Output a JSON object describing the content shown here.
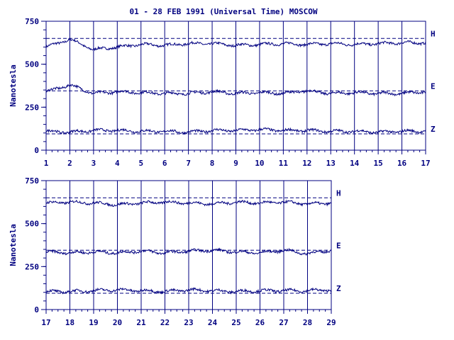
{
  "title": "01 - 28 FEB 1991 (Universal Time) MOSCOW",
  "chart_data": [
    {
      "type": "line",
      "ylabel": "Nanotesla",
      "ylim": [
        0,
        750
      ],
      "yticks": [
        "0",
        "250",
        "500",
        "750"
      ],
      "xlim": [
        1,
        17
      ],
      "xticks": [
        "1",
        "2",
        "3",
        "4",
        "5",
        "6",
        "7",
        "8",
        "9",
        "10",
        "11",
        "12",
        "13",
        "14",
        "15",
        "16",
        "17"
      ],
      "grid": "vertical day lines",
      "series": [
        {
          "name": "H",
          "ref": 650,
          "values": [
            600,
            645,
            585,
            600,
            615,
            610,
            620,
            620,
            610,
            615,
            620,
            615,
            620,
            615,
            620,
            625,
            625
          ]
        },
        {
          "name": "E",
          "ref": 345,
          "values": [
            340,
            380,
            330,
            340,
            335,
            330,
            330,
            340,
            330,
            335,
            330,
            345,
            330,
            335,
            330,
            330,
            340
          ]
        },
        {
          "name": "Z",
          "ref": 95,
          "values": [
            110,
            105,
            115,
            115,
            110,
            110,
            105,
            115,
            115,
            120,
            115,
            115,
            110,
            110,
            105,
            110,
            110
          ]
        }
      ]
    },
    {
      "type": "line",
      "ylabel": "Nanotesla",
      "ylim": [
        0,
        750
      ],
      "yticks": [
        "0",
        "250",
        "500",
        "750"
      ],
      "xlim": [
        17,
        29
      ],
      "xticks": [
        "17",
        "18",
        "19",
        "20",
        "21",
        "22",
        "23",
        "24",
        "25",
        "26",
        "27",
        "28",
        "29"
      ],
      "grid": "vertical day lines",
      "series": [
        {
          "name": "H",
          "ref": 650,
          "values": [
            620,
            625,
            620,
            610,
            620,
            625,
            620,
            615,
            625,
            620,
            625,
            615,
            620
          ]
        },
        {
          "name": "E",
          "ref": 345,
          "values": [
            335,
            330,
            335,
            330,
            340,
            330,
            340,
            345,
            335,
            330,
            345,
            325,
            345
          ]
        },
        {
          "name": "Z",
          "ref": 95,
          "values": [
            105,
            105,
            110,
            115,
            110,
            105,
            115,
            110,
            105,
            110,
            110,
            110,
            115
          ]
        }
      ]
    }
  ]
}
